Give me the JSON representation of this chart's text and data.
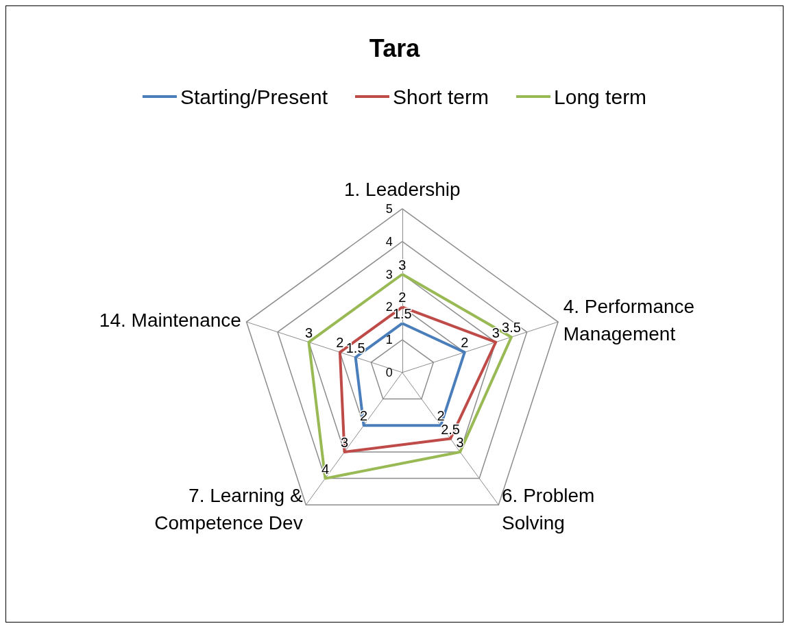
{
  "chart_data": {
    "type": "radar",
    "title": "Tara",
    "categories": [
      "1. Leadership",
      "4. Performance Management",
      "6. Problem Solving",
      "7. Learning & Competence Dev",
      "14. Maintenance"
    ],
    "series": [
      {
        "name": "Starting/Present",
        "color": "#4a7ebb",
        "values": [
          1.5,
          2,
          2,
          2,
          1.5
        ]
      },
      {
        "name": "Short term",
        "color": "#be4b48",
        "values": [
          2,
          3,
          2.5,
          3,
          2
        ]
      },
      {
        "name": "Long term",
        "color": "#98b954",
        "values": [
          3,
          3.5,
          3,
          4,
          3
        ]
      }
    ],
    "ylim": [
      0,
      5
    ],
    "yticks": [
      0,
      1,
      2,
      3,
      4,
      5
    ],
    "grid": true,
    "legend": "top",
    "data_labels": true,
    "marker": "none",
    "line_style": "solid"
  }
}
